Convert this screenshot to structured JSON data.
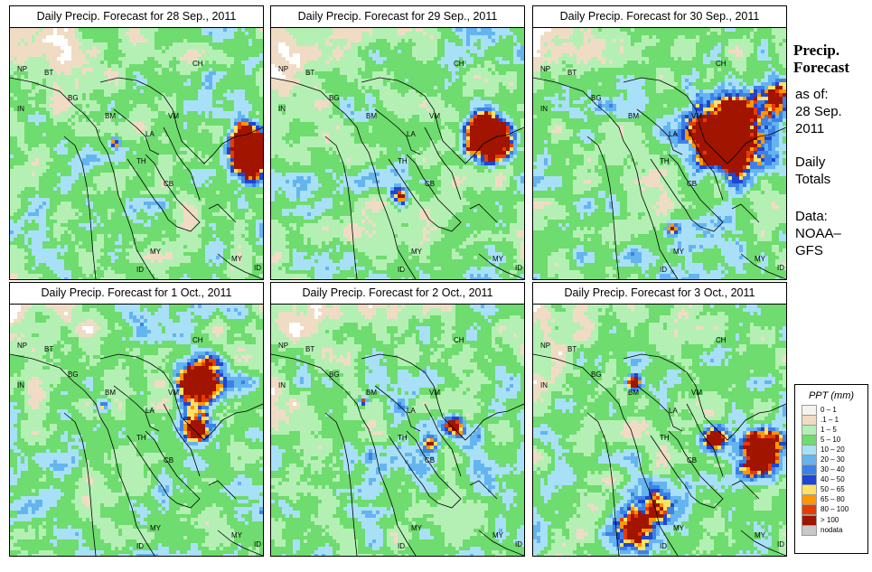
{
  "panels": [
    {
      "title": "Daily Precip. Forecast for  28 Sep., 2011",
      "day": 0
    },
    {
      "title": "Daily Precip. Forecast for  29 Sep., 2011",
      "day": 1
    },
    {
      "title": "Daily Precip. Forecast for  30 Sep., 2011",
      "day": 2
    },
    {
      "title": "Daily Precip. Forecast for  1 Oct., 2011",
      "day": 3
    },
    {
      "title": "Daily Precip. Forecast for  2 Oct., 2011",
      "day": 4
    },
    {
      "title": "Daily Precip. Forecast for  3 Oct., 2011",
      "day": 5
    }
  ],
  "sidebar": {
    "title_line1": "Precip.",
    "title_line2": "Forecast",
    "asof_line1": "as of:",
    "asof_line2": "28 Sep.",
    "asof_line3": "2011",
    "totals_line1": "Daily",
    "totals_line2": "Totals",
    "data_line1": "Data:",
    "data_line2": "NOAA–",
    "data_line3": "GFS"
  },
  "country_labels": [
    "NP",
    "BT",
    "IN",
    "BG",
    "CH",
    "BM",
    "VM",
    "LA",
    "TH",
    "CB",
    "MY",
    "ID",
    "MY",
    "ID"
  ],
  "legend": {
    "title": "PPT (mm)",
    "items": [
      {
        "label": "0 – 1",
        "color": "#f6f3ee"
      },
      {
        "label": ".1 – 1",
        "color": "#f0dcc4"
      },
      {
        "label": "1 – 5",
        "color": "#b4f0b4"
      },
      {
        "label": "5 – 10",
        "color": "#6edc6e"
      },
      {
        "label": "10 – 20",
        "color": "#a8e0f8"
      },
      {
        "label": "20 – 30",
        "color": "#64b4f0"
      },
      {
        "label": "30 – 40",
        "color": "#3c82e6"
      },
      {
        "label": "40 – 50",
        "color": "#1e46d2"
      },
      {
        "label": "50 – 65",
        "color": "#ffe164"
      },
      {
        "label": "65 – 80",
        "color": "#ff9600"
      },
      {
        "label": "80 – 100",
        "color": "#e63c00"
      },
      {
        "label": "> 100",
        "color": "#a01400"
      },
      {
        "label": "nodata",
        "color": "#c8c8c8"
      }
    ]
  }
}
